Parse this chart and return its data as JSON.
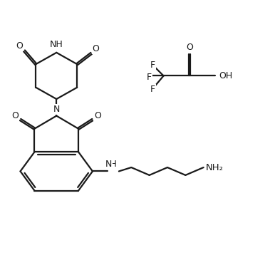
{
  "background": "#ffffff",
  "line_color": "#1a1a1a",
  "line_width": 1.6,
  "font_size": 8.5,
  "figsize": [
    3.65,
    3.65
  ],
  "dpi": 100,
  "xlim": [
    0,
    10
  ],
  "ylim": [
    0,
    10
  ]
}
